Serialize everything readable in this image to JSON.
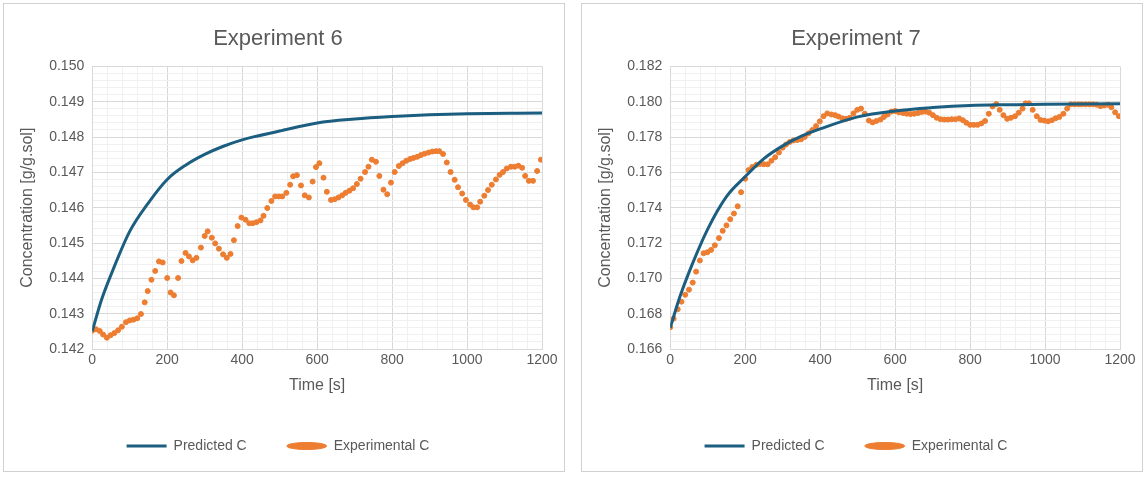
{
  "chart_data": [
    {
      "type": "line",
      "title": "Experiment 6",
      "xlabel": "Time [s]",
      "ylabel": "Concentration [g/g.sol]",
      "legend": "bottom",
      "grid": true,
      "xlim": [
        0,
        1200
      ],
      "xticks": [
        0,
        {
          "value": 40,
          "label": null
        },
        {
          "value": 80,
          "label": null
        },
        {
          "value": 120,
          "label": null
        },
        {
          "value": 160,
          "label": null
        },
        200,
        {
          "value": 240,
          "label": null
        },
        {
          "value": 280,
          "label": null
        },
        {
          "value": 320,
          "label": null
        },
        {
          "value": 360,
          "label": null
        },
        400,
        {
          "value": 440,
          "label": null
        },
        {
          "value": 480,
          "label": null
        },
        {
          "value": 520,
          "label": null
        },
        {
          "value": 560,
          "label": null
        },
        600,
        {
          "value": 640,
          "label": null
        },
        {
          "value": 680,
          "label": null
        },
        {
          "value": 720,
          "label": null
        },
        {
          "value": 760,
          "label": null
        },
        800,
        {
          "value": 840,
          "label": null
        },
        {
          "value": 880,
          "label": null
        },
        {
          "value": 920,
          "label": null
        },
        {
          "value": 960,
          "label": null
        },
        1000,
        {
          "value": 1040,
          "label": null
        },
        {
          "value": 1080,
          "label": null
        },
        {
          "value": 1120,
          "label": null
        },
        {
          "value": 1160,
          "label": null
        },
        1200
      ],
      "ylim": [
        0.142,
        0.15
      ],
      "yticks": [
        0.142,
        {
          "value": 0.1422,
          "label": null
        },
        {
          "value": 0.1424,
          "label": null
        },
        {
          "value": 0.1426,
          "label": null
        },
        {
          "value": 0.1428,
          "label": null
        },
        0.143,
        {
          "value": 0.1432,
          "label": null
        },
        {
          "value": 0.1434,
          "label": null
        },
        {
          "value": 0.1436,
          "label": null
        },
        {
          "value": 0.1438,
          "label": null
        },
        0.144,
        {
          "value": 0.1442,
          "label": null
        },
        {
          "value": 0.1444,
          "label": null
        },
        {
          "value": 0.1446,
          "label": null
        },
        {
          "value": 0.1448,
          "label": null
        },
        0.145,
        {
          "value": 0.1452,
          "label": null
        },
        {
          "value": 0.1454,
          "label": null
        },
        {
          "value": 0.1456,
          "label": null
        },
        {
          "value": 0.1458,
          "label": null
        },
        0.146,
        {
          "value": 0.1462,
          "label": null
        },
        {
          "value": 0.1464,
          "label": null
        },
        {
          "value": 0.1466,
          "label": null
        },
        {
          "value": 0.1468,
          "label": null
        },
        0.147,
        {
          "value": 0.1472,
          "label": null
        },
        {
          "value": 0.1474,
          "label": null
        },
        {
          "value": 0.1476,
          "label": null
        },
        {
          "value": 0.1478,
          "label": null
        },
        0.148,
        {
          "value": 0.1482,
          "label": null
        },
        {
          "value": 0.1484,
          "label": null
        },
        {
          "value": 0.1486,
          "label": null
        },
        {
          "value": 0.1488,
          "label": null
        },
        0.149,
        {
          "value": 0.1492,
          "label": null
        },
        {
          "value": 0.1494,
          "label": null
        },
        {
          "value": 0.1496,
          "label": null
        },
        {
          "value": 0.1498,
          "label": null
        },
        {
          "value": 0.15,
          "label": "0.150"
        }
      ],
      "series": [
        {
          "name": "Predicted C",
          "type": "line",
          "color": "#1b5e80",
          "marker": "none",
          "x": [
            0,
            25,
            50,
            100,
            150,
            200,
            250,
            300,
            350,
            400,
            500,
            600,
            700,
            800,
            900,
            1000,
            1200
          ],
          "values": [
            0.1425,
            0.1434,
            0.1441,
            0.14533,
            0.14614,
            0.1468,
            0.14721,
            0.14751,
            0.14774,
            0.14792,
            0.14817,
            0.1484,
            0.14851,
            0.14858,
            0.14863,
            0.14866,
            0.14868
          ]
        },
        {
          "name": "Experimental C",
          "type": "scatter",
          "color": "#ed7d31",
          "marker": "circle",
          "x": [
            0,
            10,
            20,
            29,
            39,
            49,
            59,
            69,
            79,
            90,
            100,
            110,
            120,
            130,
            140,
            148,
            158,
            168,
            178,
            188,
            200,
            209,
            218,
            229,
            238,
            249,
            258,
            268,
            278,
            290,
            300,
            308,
            319,
            328,
            338,
            349,
            359,
            369,
            378,
            388,
            398,
            409,
            419,
            428,
            438,
            449,
            457,
            467,
            478,
            488,
            498,
            507,
            518,
            528,
            536,
            546,
            557,
            567,
            578,
            588,
            597,
            606,
            617,
            626,
            637,
            647,
            657,
            667,
            676,
            686,
            696,
            706,
            716,
            728,
            737,
            746,
            757,
            766,
            777,
            787,
            797,
            807,
            818,
            828,
            838,
            848,
            857,
            867,
            877,
            887,
            897,
            907,
            917,
            926,
            936,
            946,
            956,
            967,
            976,
            987,
            997,
            1008,
            1017,
            1027,
            1035,
            1046,
            1056,
            1066,
            1077,
            1087,
            1096,
            1106,
            1117,
            1127,
            1137,
            1147,
            1155,
            1165,
            1176,
            1187,
            1197
          ],
          "values": [
            0.14252,
            0.14256,
            0.14251,
            0.14241,
            0.14232,
            0.14239,
            0.14245,
            0.14253,
            0.14263,
            0.14276,
            0.14281,
            0.14283,
            0.14287,
            0.14299,
            0.14332,
            0.14364,
            0.14396,
            0.14421,
            0.14448,
            0.14445,
            0.14401,
            0.1436,
            0.14352,
            0.14401,
            0.14449,
            0.14472,
            0.14462,
            0.14451,
            0.14458,
            0.14487,
            0.1452,
            0.14533,
            0.14515,
            0.14499,
            0.14484,
            0.14468,
            0.14458,
            0.14469,
            0.14508,
            0.14548,
            0.14572,
            0.14566,
            0.14556,
            0.14556,
            0.14559,
            0.14564,
            0.14577,
            0.14599,
            0.14619,
            0.14632,
            0.14632,
            0.14632,
            0.14642,
            0.14665,
            0.14689,
            0.14692,
            0.14663,
            0.14635,
            0.14629,
            0.14674,
            0.14715,
            0.14726,
            0.14685,
            0.14645,
            0.14622,
            0.14624,
            0.14629,
            0.14635,
            0.14642,
            0.14648,
            0.14655,
            0.14667,
            0.14682,
            0.14701,
            0.14716,
            0.14736,
            0.1473,
            0.1469,
            0.14651,
            0.14638,
            0.14671,
            0.14701,
            0.14718,
            0.14726,
            0.14733,
            0.14738,
            0.14741,
            0.14744,
            0.14749,
            0.14753,
            0.14756,
            0.14759,
            0.1476,
            0.1476,
            0.14752,
            0.14728,
            0.14701,
            0.14679,
            0.14658,
            0.1464,
            0.14622,
            0.14609,
            0.14601,
            0.14601,
            0.14617,
            0.14634,
            0.1465,
            0.14665,
            0.1468,
            0.14693,
            0.14701,
            0.14711,
            0.14716,
            0.14716,
            0.14719,
            0.14713,
            0.1469,
            0.14676,
            0.14676,
            0.14704,
            0.14736
          ]
        }
      ]
    },
    {
      "type": "line",
      "title": "Experiment 7",
      "xlabel": "Time [s]",
      "ylabel": "Concentration [g/g.sol]",
      "legend": "bottom",
      "grid": true,
      "xlim": [
        0,
        1200
      ],
      "xticks": [
        0,
        {
          "value": 40,
          "label": null
        },
        {
          "value": 80,
          "label": null
        },
        {
          "value": 120,
          "label": null
        },
        {
          "value": 160,
          "label": null
        },
        200,
        {
          "value": 240,
          "label": null
        },
        {
          "value": 280,
          "label": null
        },
        {
          "value": 320,
          "label": null
        },
        {
          "value": 360,
          "label": null
        },
        400,
        {
          "value": 440,
          "label": null
        },
        {
          "value": 480,
          "label": null
        },
        {
          "value": 520,
          "label": null
        },
        {
          "value": 560,
          "label": null
        },
        600,
        {
          "value": 640,
          "label": null
        },
        {
          "value": 680,
          "label": null
        },
        {
          "value": 720,
          "label": null
        },
        {
          "value": 760,
          "label": null
        },
        800,
        {
          "value": 840,
          "label": null
        },
        {
          "value": 880,
          "label": null
        },
        {
          "value": 920,
          "label": null
        },
        {
          "value": 960,
          "label": null
        },
        1000,
        {
          "value": 1040,
          "label": null
        },
        {
          "value": 1080,
          "label": null
        },
        {
          "value": 1120,
          "label": null
        },
        {
          "value": 1160,
          "label": null
        },
        1200
      ],
      "ylim": [
        0.166,
        0.182
      ],
      "yticks": [
        0.166,
        {
          "value": 0.1664,
          "label": null
        },
        {
          "value": 0.1668,
          "label": null
        },
        {
          "value": 0.1672,
          "label": null
        },
        {
          "value": 0.1676,
          "label": null
        },
        0.168,
        {
          "value": 0.1684,
          "label": null
        },
        {
          "value": 0.1688,
          "label": null
        },
        {
          "value": 0.1692,
          "label": null
        },
        {
          "value": 0.1696,
          "label": null
        },
        {
          "value": 0.17,
          "label": "0.170"
        },
        {
          "value": 0.1704,
          "label": null
        },
        {
          "value": 0.1708,
          "label": null
        },
        {
          "value": 0.1712,
          "label": null
        },
        {
          "value": 0.1716,
          "label": null
        },
        0.172,
        {
          "value": 0.1724,
          "label": null
        },
        {
          "value": 0.1728,
          "label": null
        },
        {
          "value": 0.1732,
          "label": null
        },
        {
          "value": 0.1736,
          "label": null
        },
        0.174,
        {
          "value": 0.1744,
          "label": null
        },
        {
          "value": 0.1748,
          "label": null
        },
        {
          "value": 0.1752,
          "label": null
        },
        {
          "value": 0.1756,
          "label": null
        },
        0.176,
        {
          "value": 0.1764,
          "label": null
        },
        {
          "value": 0.1768,
          "label": null
        },
        {
          "value": 0.1772,
          "label": null
        },
        {
          "value": 0.1776,
          "label": null
        },
        0.178,
        {
          "value": 0.1784,
          "label": null
        },
        {
          "value": 0.1788,
          "label": null
        },
        {
          "value": 0.1792,
          "label": null
        },
        {
          "value": 0.1796,
          "label": null
        },
        {
          "value": 0.18,
          "label": "0.180"
        },
        {
          "value": 0.1804,
          "label": null
        },
        {
          "value": 0.1808,
          "label": null
        },
        {
          "value": 0.1812,
          "label": null
        },
        {
          "value": 0.1816,
          "label": null
        },
        0.182
      ],
      "series": [
        {
          "name": "Predicted C",
          "type": "line",
          "color": "#1b5e80",
          "marker": "none",
          "x": [
            0,
            25,
            50,
            100,
            150,
            200,
            250,
            300,
            350,
            400,
            500,
            600,
            700,
            800,
            900,
            1000,
            1200
          ],
          "values": [
            0.1672,
            0.16891,
            0.17034,
            0.17279,
            0.17463,
            0.17576,
            0.17678,
            0.1775,
            0.17805,
            0.17846,
            0.17914,
            0.17948,
            0.17967,
            0.17979,
            0.17983,
            0.17985,
            0.17989
          ]
        },
        {
          "name": "Experimental C",
          "type": "scatter",
          "color": "#ed7d31",
          "marker": "circle",
          "x": [
            0,
            9,
            20,
            30,
            40,
            50,
            60,
            69,
            79,
            89,
            99,
            109,
            119,
            130,
            140,
            150,
            160,
            170,
            180,
            189,
            200,
            209,
            219,
            230,
            240,
            250,
            260,
            270,
            280,
            290,
            300,
            309,
            319,
            329,
            339,
            349,
            359,
            369,
            379,
            389,
            399,
            409,
            419,
            430,
            440,
            449,
            459,
            469,
            479,
            489,
            499,
            509,
            519,
            530,
            540,
            550,
            561,
            570,
            580,
            590,
            600,
            610,
            621,
            631,
            641,
            651,
            661,
            671,
            681,
            691,
            701,
            711,
            721,
            731,
            741,
            751,
            761,
            771,
            781,
            790,
            800,
            810,
            820,
            830,
            840,
            850,
            860,
            870,
            879,
            889,
            899,
            909,
            920,
            930,
            940,
            948,
            957,
            967,
            978,
            988,
            998,
            1008,
            1018,
            1028,
            1038,
            1049,
            1059,
            1069,
            1079,
            1089,
            1098,
            1108,
            1118,
            1128,
            1138,
            1148,
            1158,
            1168,
            1177,
            1187,
            1197
          ],
          "values": [
            0.16723,
            0.16772,
            0.16825,
            0.16868,
            0.16907,
            0.16936,
            0.16976,
            0.17038,
            0.17101,
            0.17142,
            0.17148,
            0.17161,
            0.17187,
            0.17228,
            0.17269,
            0.173,
            0.17335,
            0.17367,
            0.17408,
            0.17488,
            0.17564,
            0.17613,
            0.17631,
            0.17643,
            0.17648,
            0.17646,
            0.17646,
            0.17666,
            0.17686,
            0.17713,
            0.1774,
            0.17758,
            0.17772,
            0.17781,
            0.17783,
            0.17787,
            0.17801,
            0.17821,
            0.1784,
            0.17862,
            0.17889,
            0.17918,
            0.17934,
            0.17928,
            0.17924,
            0.17916,
            0.17906,
            0.17903,
            0.17909,
            0.17934,
            0.17954,
            0.17961,
            0.17932,
            0.17893,
            0.17883,
            0.17891,
            0.17899,
            0.17914,
            0.17928,
            0.17944,
            0.17948,
            0.1794,
            0.17936,
            0.17932,
            0.1793,
            0.17932,
            0.17936,
            0.17942,
            0.17944,
            0.17938,
            0.17924,
            0.17909,
            0.17901,
            0.17899,
            0.17899,
            0.17901,
            0.17901,
            0.17905,
            0.17895,
            0.17881,
            0.17869,
            0.17869,
            0.17869,
            0.17877,
            0.17891,
            0.17932,
            0.17973,
            0.17987,
            0.17954,
            0.17924,
            0.17903,
            0.17909,
            0.17918,
            0.17938,
            0.17961,
            0.17991,
            0.17991,
            0.17954,
            0.17918,
            0.17897,
            0.17893,
            0.17889,
            0.17895,
            0.17906,
            0.17914,
            0.17932,
            0.17961,
            0.17985,
            0.17985,
            0.17985,
            0.17985,
            0.17985,
            0.17985,
            0.17985,
            0.17983,
            0.17975,
            0.17979,
            0.17983,
            0.17969,
            0.1794,
            0.17918
          ]
        }
      ]
    }
  ]
}
